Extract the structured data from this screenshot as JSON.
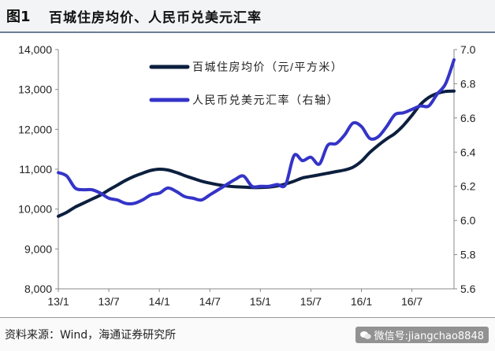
{
  "header": {
    "fig_label": "图1",
    "title": "百城住房均价、人民币兑美元汇率"
  },
  "footer": {
    "source": "资料来源：Wind，海通证券研究所",
    "watermark": "微信号:jiangchao8848"
  },
  "chart_data": {
    "type": "line",
    "title": "百城住房均价、人民币兑美元汇率",
    "x_ticks": [
      "13/1",
      "13/7",
      "14/1",
      "14/7",
      "15/1",
      "15/7",
      "16/1",
      "16/7"
    ],
    "left_axis": {
      "ylim": [
        8000,
        14000
      ],
      "ticks": [
        "8,000",
        "9,000",
        "10,000",
        "11,000",
        "12,000",
        "13,000",
        "14,000"
      ]
    },
    "right_axis": {
      "ylim": [
        5.6,
        7.0
      ],
      "ticks": [
        "5.6",
        "5.8",
        "6.0",
        "6.2",
        "6.4",
        "6.6",
        "6.8",
        "7.0"
      ]
    },
    "x_domain": [
      0,
      47
    ],
    "legend_position": "top-right",
    "series": [
      {
        "name": "百城住房均价（元/平方米）",
        "axis": "left",
        "color": "#0c1f3f",
        "x": [
          0,
          1,
          2,
          3,
          4,
          5,
          6,
          7,
          8,
          9,
          10,
          11,
          12,
          13,
          14,
          15,
          16,
          17,
          18,
          19,
          20,
          21,
          22,
          23,
          24,
          25,
          26,
          27,
          28,
          29,
          30,
          31,
          32,
          33,
          34,
          35,
          36,
          37,
          38,
          39,
          40,
          41,
          42,
          43,
          44,
          45,
          46,
          47
        ],
        "values": [
          9820,
          9920,
          10050,
          10150,
          10250,
          10350,
          10480,
          10600,
          10720,
          10820,
          10900,
          10970,
          11000,
          10980,
          10920,
          10840,
          10770,
          10700,
          10650,
          10610,
          10580,
          10560,
          10550,
          10540,
          10540,
          10550,
          10580,
          10630,
          10700,
          10780,
          10820,
          10860,
          10900,
          10940,
          10980,
          11050,
          11200,
          11420,
          11600,
          11760,
          11900,
          12100,
          12350,
          12620,
          12800,
          12900,
          12950,
          12960
        ]
      },
      {
        "name": "人民币兑美元汇率（右轴）",
        "axis": "right",
        "color": "#3434c8",
        "x": [
          0,
          1,
          2,
          3,
          4,
          5,
          6,
          7,
          8,
          9,
          10,
          11,
          12,
          13,
          14,
          15,
          16,
          17,
          18,
          19,
          20,
          21,
          22,
          23,
          24,
          25,
          26,
          27,
          28,
          29,
          30,
          31,
          32,
          33,
          34,
          35,
          36,
          37,
          38,
          39,
          40,
          41,
          42,
          43,
          44,
          45,
          46,
          47
        ],
        "values": [
          6.28,
          6.26,
          6.19,
          6.18,
          6.18,
          6.16,
          6.13,
          6.12,
          6.1,
          6.1,
          6.12,
          6.15,
          6.16,
          6.19,
          6.17,
          6.14,
          6.13,
          6.12,
          6.15,
          6.18,
          6.21,
          6.24,
          6.26,
          6.2,
          6.2,
          6.2,
          6.21,
          6.21,
          6.38,
          6.35,
          6.37,
          6.33,
          6.44,
          6.45,
          6.5,
          6.57,
          6.55,
          6.48,
          6.49,
          6.55,
          6.62,
          6.63,
          6.65,
          6.67,
          6.67,
          6.74,
          6.8,
          6.94
        ]
      }
    ]
  }
}
